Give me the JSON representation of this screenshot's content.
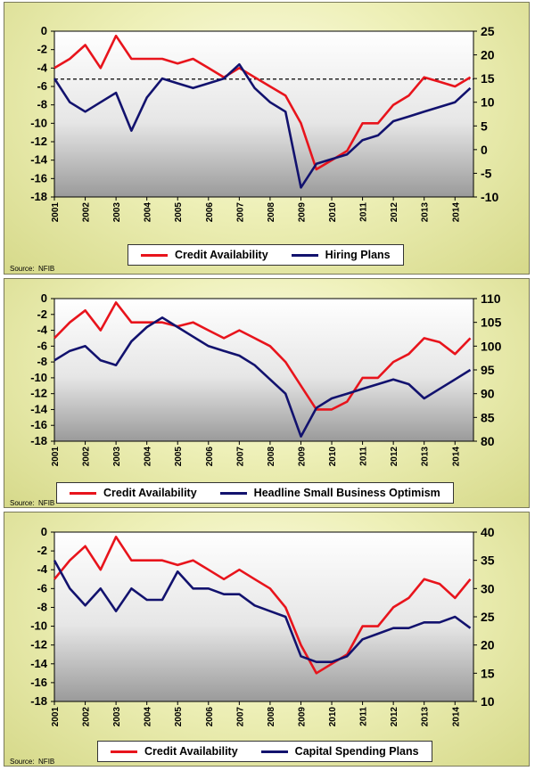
{
  "colors": {
    "credit": "#e8141c",
    "other": "#12126e",
    "dashed": "#000000"
  },
  "source_label": "Source:",
  "source_name": "NFIB",
  "chart_data": [
    {
      "type": "line",
      "x_tick_labels": [
        "2001",
        "2002",
        "2003",
        "2004",
        "2005",
        "2006",
        "2007",
        "2008",
        "2009",
        "2010",
        "2011",
        "2012",
        "2013",
        "2014"
      ],
      "y_left": {
        "min": -18,
        "max": 0,
        "ticks": [
          0,
          -2,
          -4,
          -6,
          -8,
          -10,
          -12,
          -14,
          -16,
          -18
        ]
      },
      "y_right": {
        "min": -10,
        "max": 25,
        "ticks": [
          25,
          20,
          15,
          10,
          5,
          0,
          -5,
          -10
        ]
      },
      "reference_line": {
        "axis": "left",
        "value": -5.2,
        "style": "dashed"
      },
      "legend_placement": "bottom-center",
      "grid": false,
      "series": [
        {
          "name": "Credit Availability",
          "axis": "left",
          "color": "#e8141c",
          "x": [
            2001,
            2001.5,
            2002,
            2002.5,
            2003,
            2003.5,
            2004,
            2004.5,
            2005,
            2005.5,
            2006,
            2006.5,
            2007,
            2007.5,
            2008,
            2008.5,
            2009,
            2009.5,
            2010,
            2010.5,
            2011,
            2011.5,
            2012,
            2012.5,
            2013,
            2013.5,
            2014,
            2014.5
          ],
          "values": [
            -4,
            -3,
            -1.5,
            -4,
            -0.5,
            -3,
            -3,
            -3,
            -3.5,
            -3,
            -4,
            -5,
            -4,
            -5,
            -6,
            -7,
            -10,
            -15,
            -14,
            -13,
            -10,
            -10,
            -8,
            -7,
            -5,
            -5.5,
            -6,
            -5
          ]
        },
        {
          "name": "Hiring Plans",
          "axis": "right",
          "color": "#12126e",
          "x": [
            2001,
            2001.5,
            2002,
            2002.5,
            2003,
            2003.5,
            2004,
            2004.5,
            2005,
            2005.5,
            2006,
            2006.5,
            2007,
            2007.5,
            2008,
            2008.5,
            2009,
            2009.5,
            2010,
            2010.5,
            2011,
            2011.5,
            2012,
            2012.5,
            2013,
            2013.5,
            2014,
            2014.5
          ],
          "values": [
            15,
            10,
            8,
            10,
            12,
            4,
            11,
            15,
            14,
            13,
            14,
            15,
            18,
            13,
            10,
            8,
            -8,
            -3,
            -2,
            -1,
            2,
            3,
            6,
            7,
            8,
            9,
            10,
            13
          ]
        }
      ]
    },
    {
      "type": "line",
      "x_tick_labels": [
        "2001",
        "2002",
        "2003",
        "2004",
        "2005",
        "2006",
        "2007",
        "2008",
        "2009",
        "2010",
        "2011",
        "2012",
        "2013",
        "2014"
      ],
      "y_left": {
        "min": -18,
        "max": 0,
        "ticks": [
          0,
          -2,
          -4,
          -6,
          -8,
          -10,
          -12,
          -14,
          -16,
          -18
        ]
      },
      "y_right": {
        "min": 80,
        "max": 110,
        "ticks": [
          110,
          105,
          100,
          95,
          90,
          85,
          80
        ]
      },
      "legend_placement": "bottom-center",
      "grid": false,
      "series": [
        {
          "name": "Credit Availability",
          "axis": "left",
          "color": "#e8141c",
          "x": [
            2001,
            2001.5,
            2002,
            2002.5,
            2003,
            2003.5,
            2004,
            2004.5,
            2005,
            2005.5,
            2006,
            2006.5,
            2007,
            2007.5,
            2008,
            2008.5,
            2009,
            2009.5,
            2010,
            2010.5,
            2011,
            2011.5,
            2012,
            2012.5,
            2013,
            2013.5,
            2014,
            2014.5
          ],
          "values": [
            -5,
            -3,
            -1.5,
            -4,
            -0.5,
            -3,
            -3,
            -3,
            -3.5,
            -3,
            -4,
            -5,
            -4,
            -5,
            -6,
            -8,
            -11,
            -14,
            -14,
            -13,
            -10,
            -10,
            -8,
            -7,
            -5,
            -5.5,
            -7,
            -5
          ]
        },
        {
          "name": "Headline Small Business Optimism",
          "axis": "right",
          "color": "#12126e",
          "x": [
            2001,
            2001.5,
            2002,
            2002.5,
            2003,
            2003.5,
            2004,
            2004.5,
            2005,
            2005.5,
            2006,
            2006.5,
            2007,
            2007.5,
            2008,
            2008.5,
            2009,
            2009.5,
            2010,
            2010.5,
            2011,
            2011.5,
            2012,
            2012.5,
            2013,
            2013.5,
            2014,
            2014.5
          ],
          "values": [
            97,
            99,
            100,
            97,
            96,
            101,
            104,
            106,
            104,
            102,
            100,
            99,
            98,
            96,
            93,
            90,
            81,
            87,
            89,
            90,
            91,
            92,
            93,
            92,
            89,
            91,
            93,
            95
          ]
        }
      ]
    },
    {
      "type": "line",
      "x_tick_labels": [
        "2001",
        "2002",
        "2003",
        "2004",
        "2005",
        "2006",
        "2007",
        "2008",
        "2009",
        "2010",
        "2011",
        "2012",
        "2013",
        "2014"
      ],
      "y_left": {
        "min": -18,
        "max": 0,
        "ticks": [
          0,
          -2,
          -4,
          -6,
          -8,
          -10,
          -12,
          -14,
          -16,
          -18
        ]
      },
      "y_right": {
        "min": 10,
        "max": 40,
        "ticks": [
          40,
          35,
          30,
          25,
          20,
          15,
          10
        ]
      },
      "legend_placement": "bottom-center",
      "grid": false,
      "series": [
        {
          "name": "Credit Availability",
          "axis": "left",
          "color": "#e8141c",
          "x": [
            2001,
            2001.5,
            2002,
            2002.5,
            2003,
            2003.5,
            2004,
            2004.5,
            2005,
            2005.5,
            2006,
            2006.5,
            2007,
            2007.5,
            2008,
            2008.5,
            2009,
            2009.5,
            2010,
            2010.5,
            2011,
            2011.5,
            2012,
            2012.5,
            2013,
            2013.5,
            2014,
            2014.5
          ],
          "values": [
            -5,
            -3,
            -1.5,
            -4,
            -0.5,
            -3,
            -3,
            -3,
            -3.5,
            -3,
            -4,
            -5,
            -4,
            -5,
            -6,
            -8,
            -12,
            -15,
            -14,
            -13,
            -10,
            -10,
            -8,
            -7,
            -5,
            -5.5,
            -7,
            -5
          ]
        },
        {
          "name": "Capital Spending Plans",
          "axis": "right",
          "color": "#12126e",
          "x": [
            2001,
            2001.5,
            2002,
            2002.5,
            2003,
            2003.5,
            2004,
            2004.5,
            2005,
            2005.5,
            2006,
            2006.5,
            2007,
            2007.5,
            2008,
            2008.5,
            2009,
            2009.5,
            2010,
            2010.5,
            2011,
            2011.5,
            2012,
            2012.5,
            2013,
            2013.5,
            2014,
            2014.5
          ],
          "values": [
            35,
            30,
            27,
            30,
            26,
            30,
            28,
            28,
            33,
            30,
            30,
            29,
            29,
            27,
            26,
            25,
            18,
            17,
            17,
            18,
            21,
            22,
            23,
            23,
            24,
            24,
            25,
            23
          ]
        }
      ]
    }
  ]
}
